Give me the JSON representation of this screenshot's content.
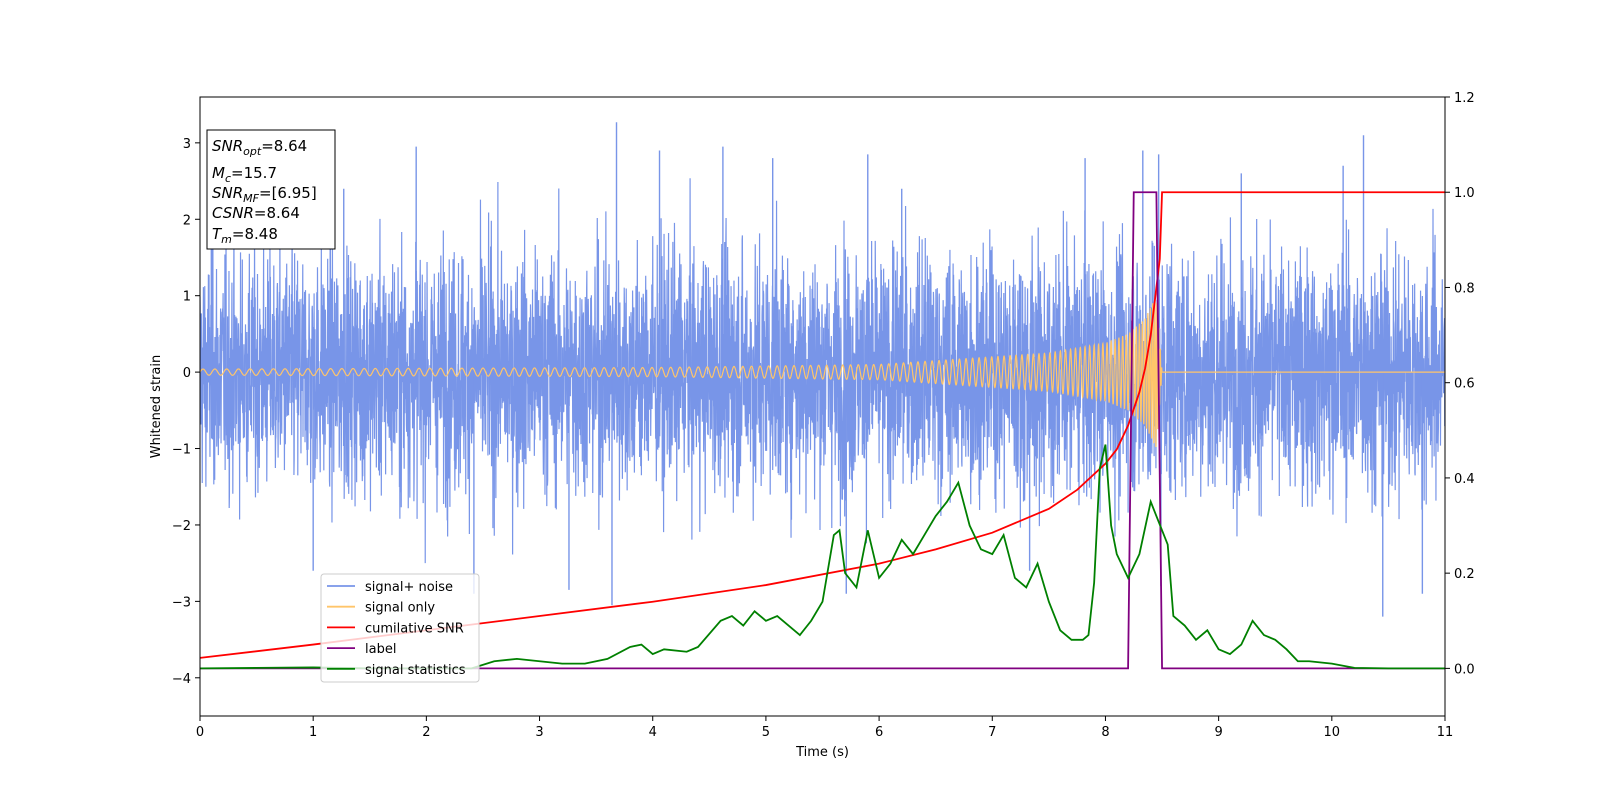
{
  "chart_data": {
    "type": "line",
    "xlabel": "Time (s)",
    "ylabel": "Whitened strain",
    "xlim": [
      0,
      11
    ],
    "ylim_left": [
      -4.5,
      3.6
    ],
    "ylim_right": [
      -0.1,
      1.2
    ],
    "x_ticks": [
      0,
      1,
      2,
      3,
      4,
      5,
      6,
      7,
      8,
      9,
      10,
      11
    ],
    "y_ticks_left": [
      -4,
      -3,
      -2,
      -1,
      0,
      1,
      2,
      3
    ],
    "y_ticks_left_labels": [
      "−4",
      "−3",
      "−2",
      "−1",
      "0",
      "1",
      "2",
      "3"
    ],
    "y_ticks_right": [
      0.0,
      0.2,
      0.4,
      0.6,
      0.8,
      1.0,
      1.2
    ],
    "y_ticks_right_labels": [
      "0.0",
      "0.2",
      "0.4",
      "0.6",
      "0.8",
      "1.0",
      "1.2"
    ],
    "annotation": {
      "snr_opt": {
        "label": "SNR",
        "sub": "opt",
        "value": "=8.64"
      },
      "mc": {
        "label": "M",
        "sub": "c",
        "value": "=15.7"
      },
      "snr_mf": {
        "label": "SNR",
        "sub": "MF",
        "value": "=[6.95]"
      },
      "csnr": {
        "label": "CSNR",
        "value": "=8.64"
      },
      "tm": {
        "label": "T",
        "sub": "m",
        "value": "=8.48"
      }
    },
    "series": [
      {
        "name": "signal+ noise",
        "axis": "left",
        "color": "#7895e8",
        "kind": "noise",
        "envelope": [
          [
            0,
            1.7
          ],
          [
            2,
            1.8
          ],
          [
            4,
            1.8
          ],
          [
            6,
            1.8
          ],
          [
            8,
            1.8
          ],
          [
            8.4,
            1.9
          ],
          [
            9,
            1.8
          ],
          [
            11,
            1.8
          ]
        ],
        "peaks": [
          [
            0.1,
            2.5
          ],
          [
            1.0,
            -2.6
          ],
          [
            1.27,
            2.4
          ],
          [
            1.91,
            2.95
          ],
          [
            2.42,
            -2.9
          ],
          [
            3.26,
            -2.85
          ],
          [
            3.68,
            3.27
          ],
          [
            3.64,
            -3.05
          ],
          [
            4.06,
            2.9
          ],
          [
            4.62,
            2.95
          ],
          [
            5.06,
            2.8
          ],
          [
            5.71,
            -2.9
          ],
          [
            5.9,
            2.85
          ],
          [
            6.2,
            2.4
          ],
          [
            7.33,
            -2.6
          ],
          [
            7.82,
            2.8
          ],
          [
            8.33,
            2.9
          ],
          [
            8.47,
            2.85
          ],
          [
            8.49,
            -2.8
          ],
          [
            9.2,
            2.6
          ],
          [
            10.1,
            2.7
          ],
          [
            10.28,
            3.1
          ],
          [
            10.45,
            -3.2
          ],
          [
            10.8,
            -2.9
          ]
        ]
      },
      {
        "name": "signal only",
        "axis": "left",
        "color": "#ffc56a",
        "kind": "chirp",
        "amplitude_points": [
          [
            0,
            0.04
          ],
          [
            4,
            0.06
          ],
          [
            6,
            0.1
          ],
          [
            7.5,
            0.25
          ],
          [
            8.0,
            0.38
          ],
          [
            8.2,
            0.5
          ],
          [
            8.35,
            0.7
          ],
          [
            8.45,
            1.0
          ],
          [
            8.5,
            0.0
          ]
        ],
        "end_time": 8.5
      },
      {
        "name": "cumilative SNR",
        "axis": "right",
        "color": "#ff0000",
        "x": [
          0,
          1,
          2,
          3,
          4,
          5,
          6,
          6.5,
          7,
          7.5,
          7.75,
          8.0,
          8.1,
          8.2,
          8.3,
          8.35,
          8.4,
          8.45,
          8.48,
          8.5,
          11
        ],
        "values": [
          0.022,
          0.05,
          0.08,
          0.11,
          0.14,
          0.175,
          0.22,
          0.25,
          0.285,
          0.335,
          0.375,
          0.43,
          0.46,
          0.51,
          0.58,
          0.63,
          0.7,
          0.8,
          0.86,
          1.0,
          1.0
        ]
      },
      {
        "name": "label",
        "axis": "right",
        "color": "#800080",
        "x": [
          0,
          8.2,
          8.25,
          8.45,
          8.5,
          11
        ],
        "values": [
          0.0,
          0.0,
          1.0,
          1.0,
          0.0,
          0.0
        ]
      },
      {
        "name": "signal statistics",
        "axis": "right",
        "color": "#008000",
        "x": [
          0,
          0.5,
          1,
          1.5,
          2,
          2.4,
          2.6,
          2.8,
          3,
          3.2,
          3.4,
          3.6,
          3.8,
          3.9,
          4.0,
          4.1,
          4.3,
          4.4,
          4.6,
          4.7,
          4.8,
          4.9,
          5.0,
          5.1,
          5.2,
          5.3,
          5.4,
          5.5,
          5.6,
          5.65,
          5.7,
          5.8,
          5.9,
          6.0,
          6.1,
          6.2,
          6.3,
          6.4,
          6.5,
          6.6,
          6.7,
          6.8,
          6.9,
          7.0,
          7.1,
          7.2,
          7.3,
          7.4,
          7.5,
          7.6,
          7.7,
          7.8,
          7.85,
          7.9,
          7.95,
          8.0,
          8.05,
          8.1,
          8.2,
          8.3,
          8.4,
          8.45,
          8.5,
          8.55,
          8.6,
          8.7,
          8.8,
          8.9,
          9.0,
          9.1,
          9.2,
          9.3,
          9.4,
          9.5,
          9.6,
          9.7,
          9.8,
          10.0,
          10.2,
          10.5,
          11
        ],
        "values": [
          0.0,
          0.001,
          0.002,
          0.0,
          0.0,
          0.0,
          0.015,
          0.02,
          0.015,
          0.01,
          0.01,
          0.02,
          0.045,
          0.05,
          0.03,
          0.04,
          0.035,
          0.045,
          0.1,
          0.11,
          0.09,
          0.12,
          0.1,
          0.11,
          0.09,
          0.07,
          0.1,
          0.14,
          0.28,
          0.29,
          0.2,
          0.17,
          0.29,
          0.19,
          0.22,
          0.27,
          0.24,
          0.28,
          0.32,
          0.35,
          0.39,
          0.3,
          0.25,
          0.24,
          0.28,
          0.19,
          0.17,
          0.22,
          0.14,
          0.08,
          0.06,
          0.06,
          0.07,
          0.18,
          0.42,
          0.47,
          0.3,
          0.24,
          0.19,
          0.24,
          0.35,
          0.32,
          0.29,
          0.26,
          0.11,
          0.09,
          0.06,
          0.08,
          0.04,
          0.03,
          0.05,
          0.1,
          0.07,
          0.06,
          0.04,
          0.015,
          0.015,
          0.01,
          0.001,
          0.0,
          0.0
        ]
      }
    ],
    "legend": {
      "location": "lower-left",
      "entries": [
        {
          "label": "signal+ noise",
          "color": "#7895e8"
        },
        {
          "label": "signal only",
          "color": "#ffc56a"
        },
        {
          "label": "cumilative SNR",
          "color": "#ff0000"
        },
        {
          "label": "label",
          "color": "#800080"
        },
        {
          "label": "signal statistics",
          "color": "#008000"
        }
      ]
    }
  }
}
